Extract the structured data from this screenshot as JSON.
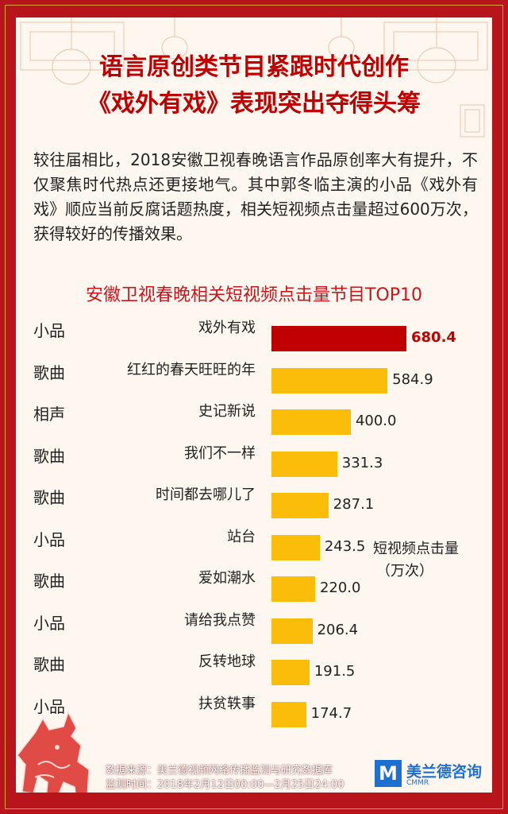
{
  "header": {
    "title_line1": "语言原创类节目紧跟时代创作",
    "title_line2": "《戏外有戏》表现突出夺得头筹"
  },
  "intro": "较往届相比，2018安徽卫视春晚语言作品原创率大有提升，不仅聚焦时代热点还更接地气。其中郭冬临主演的小品《戏外有戏》顺应当前反腐话题热度，相关短视频点击量超过600万次，获得较好的传播效果。",
  "colors": {
    "highlight_bar": "#c00000",
    "bar": "#fbbd0a",
    "title": "#c00000",
    "frame": "#b8141c"
  },
  "chart_data": {
    "type": "bar",
    "orientation": "horizontal",
    "title": "安徽卫视春晚相关短视频点击量节目TOP10",
    "unit_label": [
      "短视频点击量",
      "（万次）"
    ],
    "categories": [
      "小品",
      "歌曲",
      "相声",
      "歌曲",
      "歌曲",
      "小品",
      "歌曲",
      "小品",
      "歌曲",
      "小品"
    ],
    "programs": [
      "戏外有戏",
      "红红的春天旺旺的年",
      "史记新说",
      "我们不一样",
      "时间都去哪儿了",
      "站台",
      "爱如潮水",
      "请给我点赞",
      "反转地球",
      "扶贫轶事"
    ],
    "values": [
      680.4,
      584.9,
      400.0,
      331.3,
      287.1,
      243.5,
      220.0,
      206.4,
      191.5,
      174.7
    ],
    "value_labels": [
      "680.4",
      "584.9",
      "400.0",
      "331.3",
      "287.1",
      "243.5",
      "220.0",
      "206.4",
      "191.5",
      "174.7"
    ],
    "highlight_index": 0
  },
  "footer": {
    "source": "数据来源：美兰德视频网络传播监测与研究数据库",
    "period": "监测时间：2018年2月12日00:00—2月25日24:00"
  },
  "logo": {
    "mark": "M",
    "name": "美兰德咨询",
    "tag": "CMMR"
  }
}
